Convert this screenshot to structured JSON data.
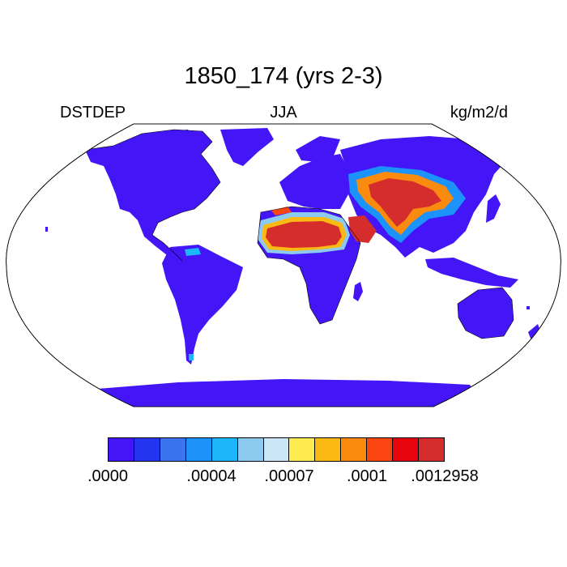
{
  "title": "1850_174 (yrs 2-3)",
  "left_label": "DSTDEP",
  "center_label": "JJA",
  "right_label": "kg/m2/d",
  "colors": {
    "ocean": "#ffffff",
    "land_base": "#4416f7",
    "outline": "#000000"
  },
  "colorbar": {
    "colors": [
      "#4416f7",
      "#2335ee",
      "#3a74ee",
      "#1b93fb",
      "#1cb7fb",
      "#8dcaf0",
      "#cbe7f7",
      "#fdeb51",
      "#fbb913",
      "#fb8b0f",
      "#fb4612",
      "#e8040c",
      "#d42d2c"
    ],
    "tick_labels": [
      ".0000",
      ".00004",
      ".00007",
      ".0001",
      ".0012958"
    ]
  }
}
